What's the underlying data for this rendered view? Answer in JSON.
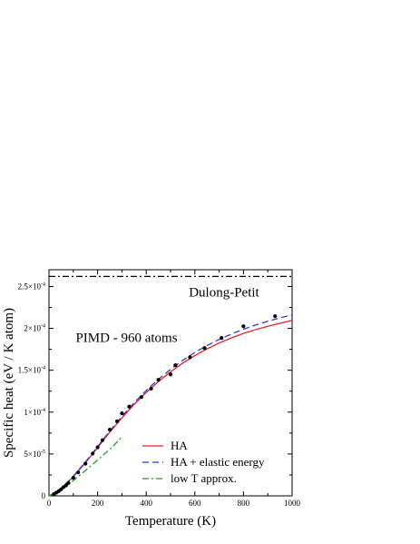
{
  "chart_data": {
    "type": "line",
    "title": "",
    "xlabel": "Temperature  (K)",
    "ylabel": "Specific  heat  (eV / K atom)",
    "xlim": [
      0,
      1000
    ],
    "ylim": [
      0,
      0.00027
    ],
    "grid": false,
    "legend_placement": "bottom-right",
    "x_ticks": [
      {
        "value": 0,
        "label": "0"
      },
      {
        "value": 200,
        "label": "200"
      },
      {
        "value": 400,
        "label": "400"
      },
      {
        "value": 600,
        "label": "600"
      },
      {
        "value": 800,
        "label": "800"
      },
      {
        "value": 1000,
        "label": "1000"
      }
    ],
    "y_ticks": [
      {
        "value": 0,
        "label": "0",
        "mantissa": "",
        "exponent": ""
      },
      {
        "value": 5e-05,
        "label": "5×10⁻⁵",
        "mantissa": "5×10",
        "exponent": "-5"
      },
      {
        "value": 0.0001,
        "label": "1×10⁻⁴",
        "mantissa": "1×10",
        "exponent": "-4"
      },
      {
        "value": 0.00015,
        "label": "1.5×10⁻⁴",
        "mantissa": "1.5×10",
        "exponent": "-4"
      },
      {
        "value": 0.0002,
        "label": "2×10⁻⁴",
        "mantissa": "2×10",
        "exponent": "-4"
      },
      {
        "value": 0.00025,
        "label": "2.5×10⁻⁴",
        "mantissa": "2.5×10",
        "exponent": "-4"
      }
    ],
    "annotations": [
      {
        "text": "Dulong-Petit",
        "x": 720,
        "y": 0.000238
      },
      {
        "text": "PIMD - 960 atoms",
        "x": 110,
        "y": 0.000184
      }
    ],
    "reference_line": {
      "name": "Dulong-Petit",
      "y": 0.000262,
      "color": "#000000",
      "style": "dashdot"
    },
    "series": [
      {
        "name": "HA",
        "color": "#e8212b",
        "style": "solid",
        "x": [
          0,
          20,
          40,
          60,
          80,
          100,
          120,
          150,
          200,
          250,
          300,
          350,
          400,
          450,
          500,
          550,
          600,
          650,
          700,
          750,
          800,
          850,
          900,
          950,
          1000
        ],
        "y": [
          0,
          2.8e-06,
          6.8e-06,
          1.15e-05,
          1.7e-05,
          2.3e-05,
          2.95e-05,
          3.95e-05,
          5.75e-05,
          7.6e-05,
          9.3e-05,
          0.000109,
          0.0001235,
          0.0001365,
          0.000148,
          0.0001585,
          0.0001675,
          0.0001755,
          0.0001825,
          0.0001885,
          0.000194,
          0.0001985,
          0.0002025,
          0.000206,
          0.0002095
        ]
      },
      {
        "name": "HA + elastic energy",
        "color": "#2a3fd6",
        "style": "dashed",
        "x": [
          0,
          20,
          40,
          60,
          80,
          100,
          120,
          150,
          200,
          250,
          300,
          350,
          400,
          450,
          500,
          550,
          600,
          650,
          700,
          750,
          800,
          850,
          900,
          950,
          1000
        ],
        "y": [
          0,
          2.9e-06,
          7e-06,
          1.18e-05,
          1.75e-05,
          2.37e-05,
          3.03e-05,
          4.05e-05,
          5.88e-05,
          7.75e-05,
          9.48e-05,
          0.000111,
          0.0001258,
          0.0001392,
          0.000151,
          0.0001618,
          0.0001712,
          0.0001795,
          0.0001868,
          0.0001932,
          0.000199,
          0.000204,
          0.0002085,
          0.0002125,
          0.000216
        ]
      },
      {
        "name": "low  T  approx.",
        "color": "#1f9a2e",
        "style": "dashdot",
        "x": [
          0,
          20,
          40,
          60,
          80,
          100,
          120,
          150,
          180,
          200,
          230,
          260,
          300
        ],
        "y": [
          0,
          2.5e-06,
          5.8e-06,
          9.6e-06,
          1.37e-05,
          1.83e-05,
          2.3e-05,
          3.03e-05,
          3.78e-05,
          4.28e-05,
          5.05e-05,
          5.82e-05,
          7.05e-05
        ]
      },
      {
        "name": "PIMD - 960 atoms",
        "color": "#000000",
        "style": "markers",
        "x": [
          20,
          30,
          40,
          50,
          60,
          70,
          80,
          100,
          120,
          150,
          180,
          200,
          220,
          250,
          280,
          300,
          330,
          380,
          420,
          450,
          500,
          520,
          580,
          640,
          710,
          800,
          930
        ],
        "y": [
          2e-06,
          3.8e-06,
          5.5e-06,
          7.8e-06,
          1.05e-05,
          1.25e-05,
          1.55e-05,
          2.15e-05,
          2.8e-05,
          3.85e-05,
          5.05e-05,
          5.8e-05,
          6.65e-05,
          7.9e-05,
          8.9e-05,
          9.85e-05,
          0.0001065,
          0.000118,
          0.000128,
          0.0001385,
          0.000145,
          0.000156,
          0.0001655,
          0.0001765,
          0.0001885,
          0.0002025,
          0.0002145
        ]
      }
    ]
  }
}
